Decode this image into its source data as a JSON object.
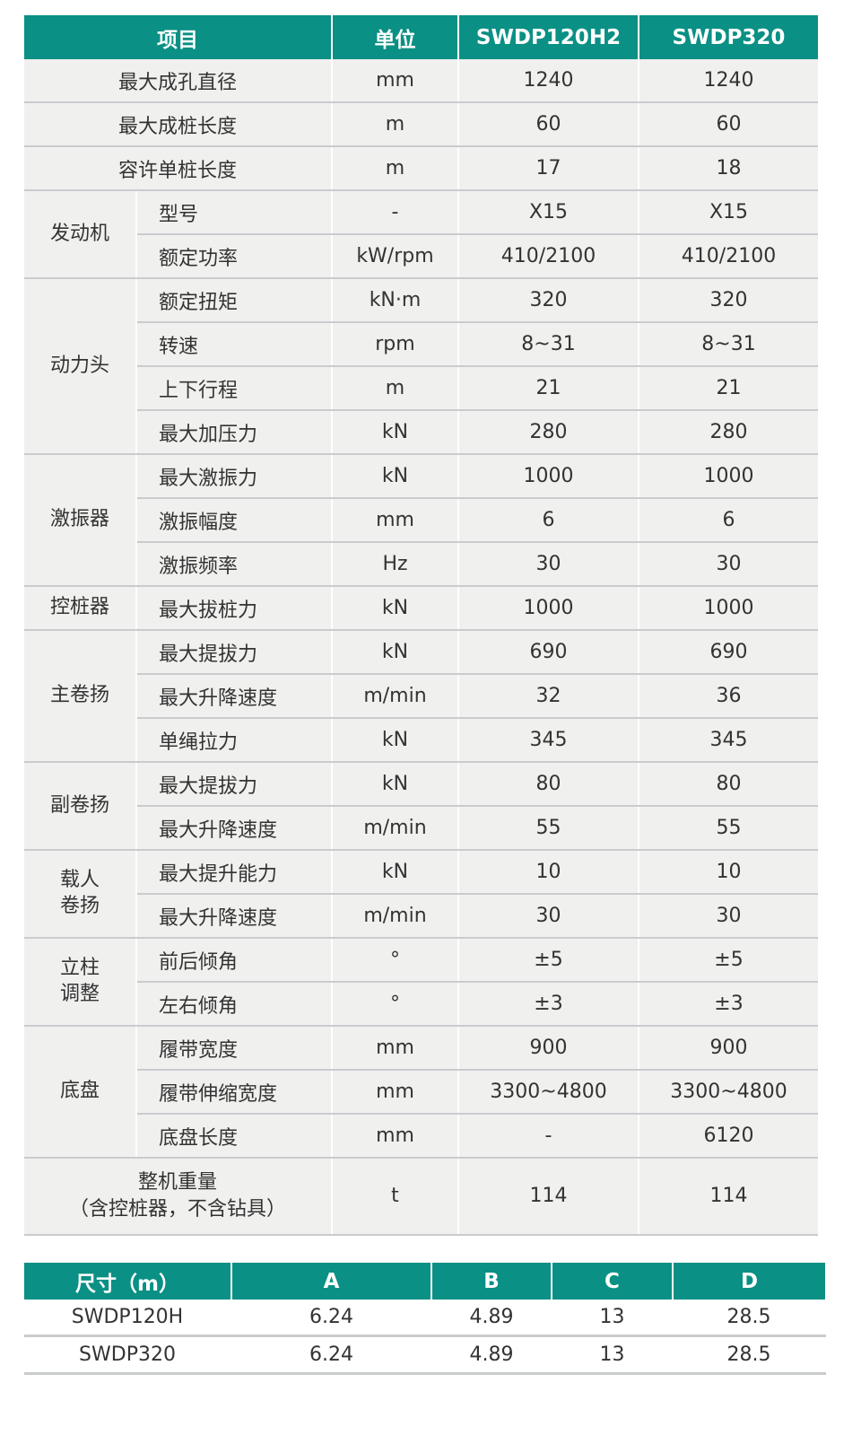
{
  "colors": {
    "header": "#0a9084",
    "row": "#f0f0ef",
    "rule": "#c9cccd"
  },
  "spec": {
    "headers": [
      "项目",
      "单位",
      "SWDP120H2",
      "SWDP320"
    ],
    "rows": [
      {
        "group": null,
        "item": "最大成孔直径",
        "unit": "mm",
        "v1": "1240",
        "v2": "1240"
      },
      {
        "group": null,
        "item": "最大成桩长度",
        "unit": "m",
        "v1": "60",
        "v2": "60"
      },
      {
        "group": null,
        "item": "容许单桩长度",
        "unit": "m",
        "v1": "17",
        "v2": "18"
      },
      {
        "group": "发动机",
        "item": "型号",
        "unit": "-",
        "v1": "X15",
        "v2": "X15"
      },
      {
        "group": "发动机",
        "item": "额定功率",
        "unit": "kW/rpm",
        "v1": "410/2100",
        "v2": "410/2100"
      },
      {
        "group": "动力头",
        "item": "额定扭矩",
        "unit": "kN·m",
        "v1": "320",
        "v2": "320"
      },
      {
        "group": "动力头",
        "item": "转速",
        "unit": "rpm",
        "v1": "8~31",
        "v2": "8~31"
      },
      {
        "group": "动力头",
        "item": "上下行程",
        "unit": "m",
        "v1": "21",
        "v2": "21"
      },
      {
        "group": "动力头",
        "item": "最大加压力",
        "unit": "kN",
        "v1": "280",
        "v2": "280"
      },
      {
        "group": "激振器",
        "item": "最大激振力",
        "unit": "kN",
        "v1": "1000",
        "v2": "1000"
      },
      {
        "group": "激振器",
        "item": "激振幅度",
        "unit": "mm",
        "v1": "6",
        "v2": "6"
      },
      {
        "group": "激振器",
        "item": "激振频率",
        "unit": "Hz",
        "v1": "30",
        "v2": "30"
      },
      {
        "group": "控桩器",
        "item": "最大拔桩力",
        "unit": "kN",
        "v1": "1000",
        "v2": "1000"
      },
      {
        "group": "主卷扬",
        "item": "最大提拔力",
        "unit": "kN",
        "v1": "690",
        "v2": "690"
      },
      {
        "group": "主卷扬",
        "item": "最大升降速度",
        "unit": "m/min",
        "v1": "32",
        "v2": "36"
      },
      {
        "group": "主卷扬",
        "item": "单绳拉力",
        "unit": "kN",
        "v1": "345",
        "v2": "345"
      },
      {
        "group": "副卷扬",
        "item": "最大提拔力",
        "unit": "kN",
        "v1": "80",
        "v2": "80"
      },
      {
        "group": "副卷扬",
        "item": "最大升降速度",
        "unit": "m/min",
        "v1": "55",
        "v2": "55"
      },
      {
        "group": "载人\n卷扬",
        "item": "最大提升能力",
        "unit": "kN",
        "v1": "10",
        "v2": "10"
      },
      {
        "group": "载人\n卷扬",
        "item": "最大升降速度",
        "unit": "m/min",
        "v1": "30",
        "v2": "30"
      },
      {
        "group": "立柱\n调整",
        "item": "前后倾角",
        "unit": "°",
        "v1": "±5",
        "v2": "±5"
      },
      {
        "group": "立柱\n调整",
        "item": "左右倾角",
        "unit": "°",
        "v1": "±3",
        "v2": "±3"
      },
      {
        "group": "底盘",
        "item": "履带宽度",
        "unit": "mm",
        "v1": "900",
        "v2": "900"
      },
      {
        "group": "底盘",
        "item": "履带伸缩宽度",
        "unit": "mm",
        "v1": "3300~4800",
        "v2": "3300~4800"
      },
      {
        "group": "底盘",
        "item": "底盘长度",
        "unit": "mm",
        "v1": "-",
        "v2": "6120"
      }
    ],
    "weight": {
      "item": "整机重量\n（含控桩器，不含钻具）",
      "unit": "t",
      "v1": "114",
      "v2": "114"
    }
  },
  "dims": {
    "headers": [
      "尺寸（m）",
      "A",
      "B",
      "C",
      "D"
    ],
    "rows": [
      [
        "SWDP120H",
        "6.24",
        "4.89",
        "13",
        "28.5"
      ],
      [
        "SWDP320",
        "6.24",
        "4.89",
        "13",
        "28.5"
      ]
    ]
  }
}
